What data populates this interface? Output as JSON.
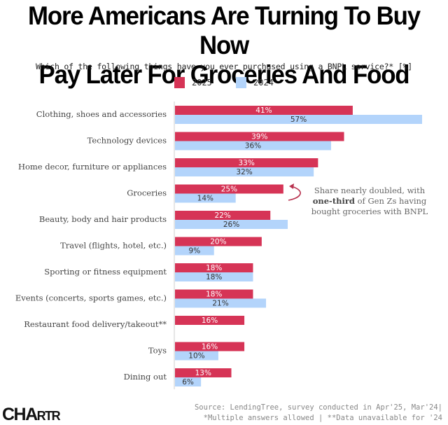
{
  "header": {
    "title_line1": "More Americans Are Turning To Buy Now",
    "title_line2": "Pay Later For Groceries And Food",
    "subtitle": "Which of the following things have you ever purchased using a BNPL service?* [%]"
  },
  "legend": [
    {
      "label": "2025",
      "color": "#d63456"
    },
    {
      "label": "2024",
      "color": "#b3d4fb"
    }
  ],
  "annotation": {
    "line1": "Share nearly doubled, with",
    "bold": "one-third",
    "line2_rest": " of Gen Zs having",
    "line3": "bought groceries with BNPL",
    "arrow_color": "#b8324f"
  },
  "footer": {
    "logo_big": "CHA",
    "logo_small": "RTR",
    "source_line1": "Source: LendingTree, survey conducted in Apr'25, Mar'24|",
    "source_line2": "*Multiple answers allowed | **Data unavailable for '24"
  },
  "chart_data": {
    "type": "bar",
    "orientation": "horizontal",
    "title": "More Americans Are Turning To Buy Now Pay Later For Groceries And Food",
    "subtitle": "Which of the following things have you ever purchased using a BNPL service?* [%]",
    "xlabel": "",
    "ylabel": "",
    "xlim": [
      0,
      57
    ],
    "grid": false,
    "legend_position": "top-center",
    "categories": [
      "Clothing, shoes and accessories",
      "Technology devices",
      "Home decor, furniture or appliances",
      "Groceries",
      "Beauty, body and hair products",
      "Travel (flights, hotel, etc.)",
      "Sporting or fitness equipment",
      "Events (concerts, sports games, etc.)",
      "Restaurant food delivery/takeout**",
      "Toys",
      "Dining out"
    ],
    "series": [
      {
        "name": "2025",
        "color": "#d63456",
        "label_color": "#ffffff",
        "values": [
          41,
          39,
          33,
          25,
          22,
          20,
          18,
          18,
          16,
          16,
          13
        ]
      },
      {
        "name": "2024",
        "color": "#b3d4fb",
        "label_color": "#333333",
        "values": [
          57,
          36,
          32,
          14,
          26,
          9,
          18,
          21,
          null,
          10,
          6
        ]
      }
    ],
    "value_suffix": "%"
  }
}
